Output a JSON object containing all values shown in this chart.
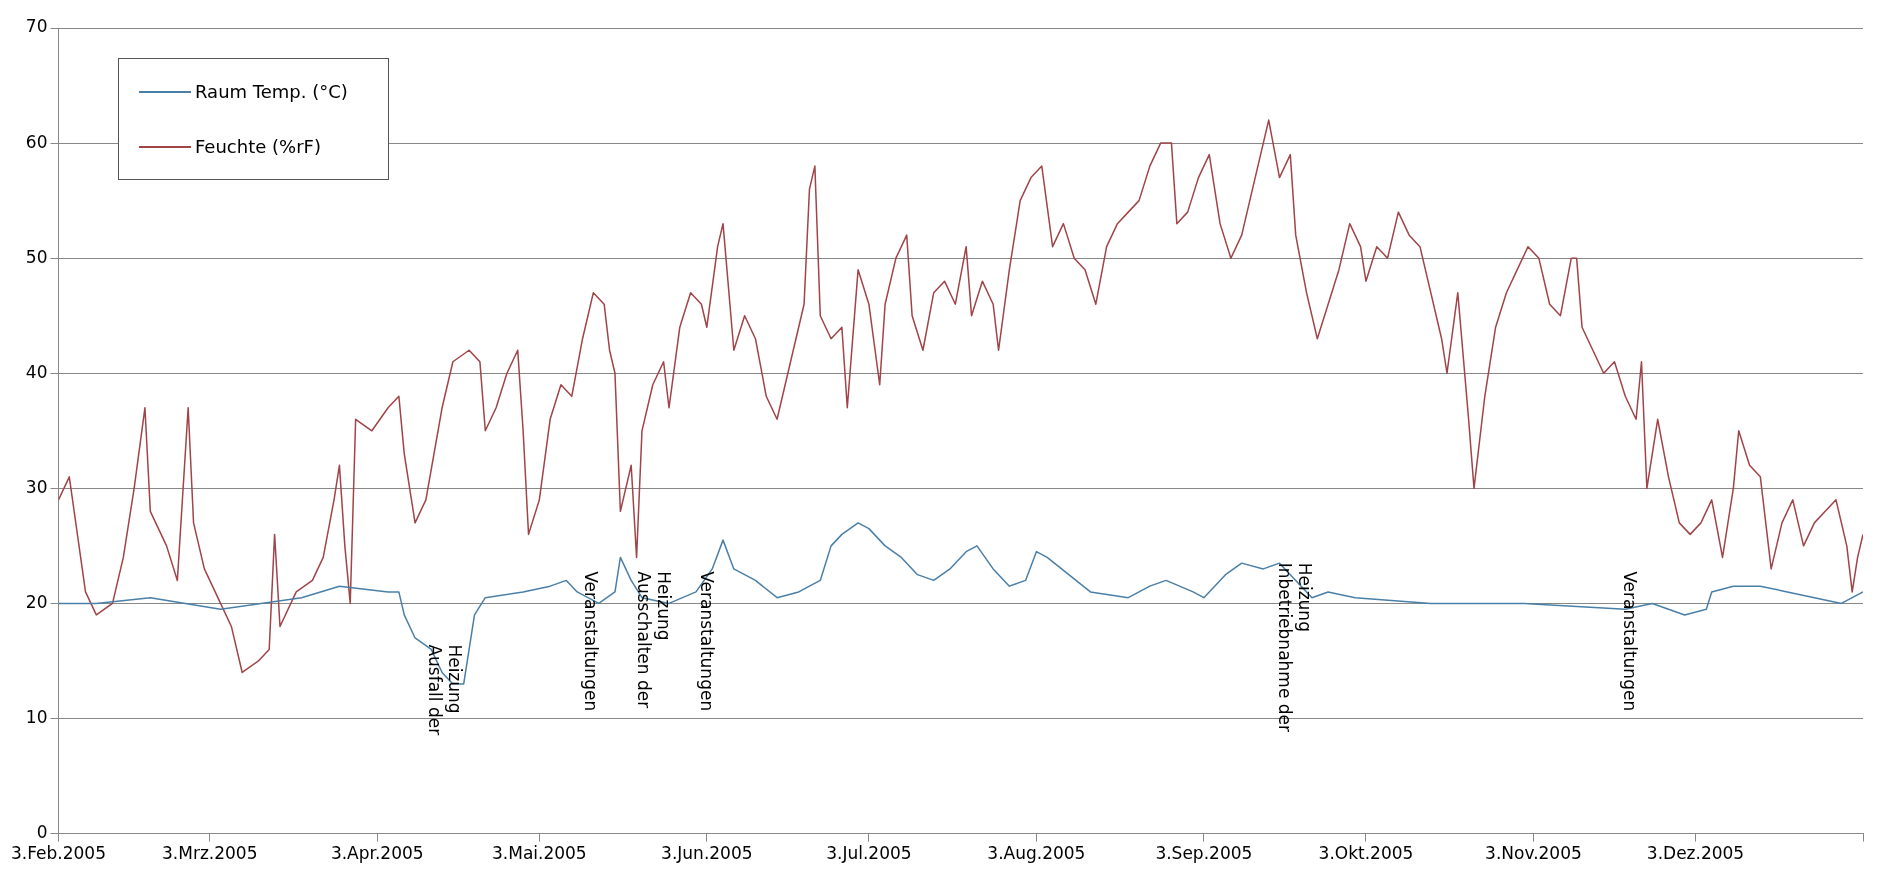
{
  "chart_data": {
    "type": "line",
    "xlim": [
      "2005-02-03",
      "2006-01-03"
    ],
    "xticks": [
      {
        "value": "2005-02-03",
        "label": "3.Feb.2005"
      },
      {
        "value": "2005-03-03",
        "label": "3.Mrz.2005"
      },
      {
        "value": "2005-04-03",
        "label": "3.Apr.2005"
      },
      {
        "value": "2005-05-03",
        "label": "3.Mai.2005"
      },
      {
        "value": "2005-06-03",
        "label": "3.Jun.2005"
      },
      {
        "value": "2005-07-03",
        "label": "3.Jul.2005"
      },
      {
        "value": "2005-08-03",
        "label": "3.Aug.2005"
      },
      {
        "value": "2005-09-03",
        "label": "3.Sep.2005"
      },
      {
        "value": "2005-10-03",
        "label": "3.Okt.2005"
      },
      {
        "value": "2005-11-03",
        "label": "3.Nov.2005"
      },
      {
        "value": "2005-12-03",
        "label": "3.Dez.2005"
      },
      {
        "value": "2006-01-03",
        "label": null
      }
    ],
    "ylim": [
      0,
      70
    ],
    "yticks": [
      0,
      10,
      20,
      30,
      40,
      50,
      60,
      70
    ],
    "grid": "y",
    "legend": "top left",
    "series": [
      {
        "name": "Raum Temp. (°C)",
        "color": "#4a7fa8",
        "x": [
          "2005-02-03",
          "2005-02-10",
          "2005-02-20",
          "2005-03-05",
          "2005-03-20",
          "2005-03-27",
          "2005-04-05",
          "2005-04-07",
          "2005-04-08",
          "2005-04-10",
          "2005-04-13",
          "2005-04-15",
          "2005-04-17",
          "2005-04-19",
          "2005-04-20",
          "2005-04-21",
          "2005-04-23",
          "2005-04-30",
          "2005-05-05",
          "2005-05-08",
          "2005-05-10",
          "2005-05-14",
          "2005-05-17",
          "2005-05-18",
          "2005-05-20",
          "2005-05-22",
          "2005-05-27",
          "2005-06-01",
          "2005-06-04",
          "2005-06-06",
          "2005-06-08",
          "2005-06-12",
          "2005-06-16",
          "2005-06-20",
          "2005-06-24",
          "2005-06-26",
          "2005-06-28",
          "2005-07-01",
          "2005-07-03",
          "2005-07-06",
          "2005-07-09",
          "2005-07-12",
          "2005-07-15",
          "2005-07-18",
          "2005-07-21",
          "2005-07-23",
          "2005-07-26",
          "2005-07-29",
          "2005-08-01",
          "2005-08-03",
          "2005-08-05",
          "2005-08-09",
          "2005-08-13",
          "2005-08-20",
          "2005-08-24",
          "2005-08-27",
          "2005-09-01",
          "2005-09-03",
          "2005-09-07",
          "2005-09-10",
          "2005-09-14",
          "2005-09-17",
          "2005-09-20",
          "2005-09-23",
          "2005-09-26",
          "2005-10-01",
          "2005-10-15",
          "2005-11-01",
          "2005-11-20",
          "2005-11-25",
          "2005-12-01",
          "2005-12-05",
          "2005-12-06",
          "2005-12-10",
          "2005-12-15",
          "2005-12-20",
          "2005-12-25",
          "2005-12-30",
          "2006-01-03"
        ],
        "values": [
          20,
          20,
          20.5,
          19.5,
          20.5,
          21.5,
          21,
          21,
          19,
          17,
          16,
          14,
          13,
          13,
          16,
          19,
          20.5,
          21,
          21.5,
          22,
          21,
          20,
          21,
          24,
          22,
          20.5,
          20,
          21,
          23,
          25.5,
          23,
          22,
          20.5,
          21,
          22,
          25,
          26,
          27,
          26.5,
          25,
          24,
          22.5,
          22,
          23,
          24.5,
          25,
          23,
          21.5,
          22,
          24.5,
          24,
          22.5,
          21,
          20.5,
          21.5,
          22,
          21,
          20.5,
          22.5,
          23.5,
          23,
          23.5,
          22,
          20.5,
          21,
          20.5,
          20,
          20,
          19.5,
          20,
          19,
          19.5,
          21,
          21.5,
          21.5,
          21,
          20.5,
          20,
          21
        ]
      },
      {
        "name": "Feuchte (%rF)",
        "color": "#a04448",
        "x": [
          "2005-02-03",
          "2005-02-05",
          "2005-02-08",
          "2005-02-10",
          "2005-02-13",
          "2005-02-15",
          "2005-02-17",
          "2005-02-19",
          "2005-02-20",
          "2005-02-23",
          "2005-02-25",
          "2005-02-27",
          "2005-02-28",
          "2005-03-02",
          "2005-03-05",
          "2005-03-07",
          "2005-03-09",
          "2005-03-12",
          "2005-03-14",
          "2005-03-15",
          "2005-03-16",
          "2005-03-19",
          "2005-03-22",
          "2005-03-24",
          "2005-03-26",
          "2005-03-27",
          "2005-03-28",
          "2005-03-29",
          "2005-03-30",
          "2005-04-02",
          "2005-04-05",
          "2005-04-07",
          "2005-04-08",
          "2005-04-10",
          "2005-04-12",
          "2005-04-15",
          "2005-04-17",
          "2005-04-20",
          "2005-04-22",
          "2005-04-23",
          "2005-04-25",
          "2005-04-27",
          "2005-04-29",
          "2005-04-30",
          "2005-05-01",
          "2005-05-03",
          "2005-05-05",
          "2005-05-07",
          "2005-05-09",
          "2005-05-11",
          "2005-05-13",
          "2005-05-15",
          "2005-05-16",
          "2005-05-17",
          "2005-05-18",
          "2005-05-20",
          "2005-05-21",
          "2005-05-22",
          "2005-05-24",
          "2005-05-26",
          "2005-05-27",
          "2005-05-29",
          "2005-05-31",
          "2005-06-02",
          "2005-06-03",
          "2005-06-05",
          "2005-06-06",
          "2005-06-08",
          "2005-06-10",
          "2005-06-12",
          "2005-06-14",
          "2005-06-16",
          "2005-06-18",
          "2005-06-21",
          "2005-06-22",
          "2005-06-23",
          "2005-06-24",
          "2005-06-26",
          "2005-06-28",
          "2005-06-29",
          "2005-07-01",
          "2005-07-03",
          "2005-07-05",
          "2005-07-06",
          "2005-07-08",
          "2005-07-10",
          "2005-07-11",
          "2005-07-13",
          "2005-07-15",
          "2005-07-17",
          "2005-07-19",
          "2005-07-21",
          "2005-07-22",
          "2005-07-24",
          "2005-07-26",
          "2005-07-27",
          "2005-07-29",
          "2005-07-31",
          "2005-08-02",
          "2005-08-04",
          "2005-08-06",
          "2005-08-08",
          "2005-08-10",
          "2005-08-12",
          "2005-08-14",
          "2005-08-16",
          "2005-08-18",
          "2005-08-20",
          "2005-08-22",
          "2005-08-24",
          "2005-08-26",
          "2005-08-28",
          "2005-08-29",
          "2005-08-31",
          "2005-09-02",
          "2005-09-04",
          "2005-09-06",
          "2005-09-08",
          "2005-09-10",
          "2005-09-12",
          "2005-09-14",
          "2005-09-15",
          "2005-09-17",
          "2005-09-19",
          "2005-09-20",
          "2005-09-22",
          "2005-09-24",
          "2005-09-26",
          "2005-09-28",
          "2005-09-30",
          "2005-10-02",
          "2005-10-03",
          "2005-10-05",
          "2005-10-07",
          "2005-10-09",
          "2005-10-11",
          "2005-10-13",
          "2005-10-15",
          "2005-10-17",
          "2005-10-18",
          "2005-10-20",
          "2005-10-22",
          "2005-10-23",
          "2005-10-25",
          "2005-10-27",
          "2005-10-29",
          "2005-10-31",
          "2005-11-02",
          "2005-11-04",
          "2005-11-06",
          "2005-11-08",
          "2005-11-10",
          "2005-11-11",
          "2005-11-12",
          "2005-11-14",
          "2005-11-16",
          "2005-11-18",
          "2005-11-20",
          "2005-11-22",
          "2005-11-23",
          "2005-11-24",
          "2005-11-26",
          "2005-11-28",
          "2005-11-30",
          "2005-12-02",
          "2005-12-04",
          "2005-12-06",
          "2005-12-08",
          "2005-12-10",
          "2005-12-11",
          "2005-12-13",
          "2005-12-15",
          "2005-12-17",
          "2005-12-19",
          "2005-12-21",
          "2005-12-23",
          "2005-12-25",
          "2005-12-27",
          "2005-12-29",
          "2005-12-31",
          "2006-01-01",
          "2006-01-02",
          "2006-01-03"
        ],
        "values": [
          29,
          31,
          21,
          19,
          20,
          24,
          30,
          37,
          28,
          25,
          22,
          37,
          27,
          23,
          20,
          18,
          14,
          15,
          16,
          26,
          18,
          21,
          22,
          24,
          29,
          32,
          25,
          20,
          36,
          35,
          37,
          38,
          33,
          27,
          29,
          37,
          41,
          42,
          41,
          35,
          37,
          40,
          42,
          35,
          26,
          29,
          36,
          39,
          38,
          43,
          47,
          46,
          42,
          40,
          28,
          32,
          24,
          35,
          39,
          41,
          37,
          44,
          47,
          46,
          44,
          51,
          53,
          42,
          45,
          43,
          38,
          36,
          40,
          46,
          56,
          58,
          45,
          43,
          44,
          37,
          49,
          46,
          39,
          46,
          50,
          52,
          45,
          42,
          47,
          48,
          46,
          51,
          45,
          48,
          46,
          42,
          49,
          55,
          57,
          58,
          51,
          53,
          50,
          49,
          46,
          51,
          53,
          54,
          55,
          58,
          60,
          60,
          53,
          54,
          57,
          59,
          53,
          50,
          52,
          56,
          60,
          62,
          57,
          59,
          52,
          47,
          43,
          46,
          49,
          53,
          51,
          48,
          51,
          50,
          54,
          52,
          51,
          47,
          43,
          40,
          47,
          36,
          30,
          38,
          44,
          47,
          49,
          51,
          50,
          46,
          45,
          50,
          50,
          44,
          42,
          40,
          41,
          38,
          36,
          41,
          30,
          36,
          31,
          27,
          26,
          27,
          29,
          24,
          30,
          35,
          32,
          31,
          23,
          27,
          29,
          25,
          27,
          28,
          29,
          25,
          21,
          24,
          26
        ]
      }
    ],
    "annotations": [
      "Ausfall der Heizung",
      "Veranstaltungen",
      "Ausschalten der Heizung",
      "Veranstaltungen",
      "Inbetriebnahme der Heizung",
      "Veranstaltungen"
    ]
  }
}
